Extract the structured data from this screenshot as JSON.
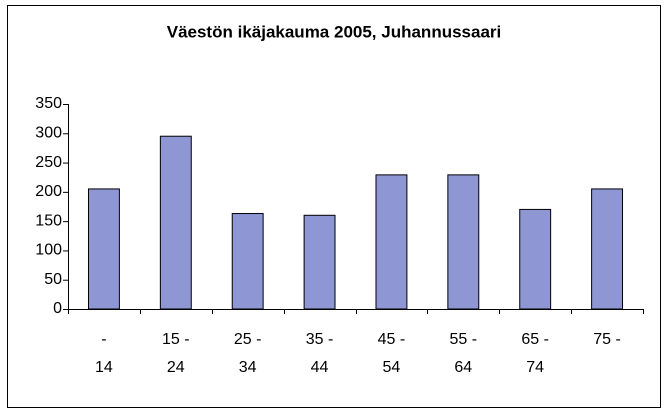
{
  "chart_data": {
    "type": "bar",
    "title": "Väestön ikäjakauma 2005, Juhannussaari",
    "categories": [
      "- 14",
      "15 - 24",
      "25 - 34",
      "35 - 44",
      "45 - 54",
      "55 - 64",
      "65 - 74",
      "75 -"
    ],
    "values": [
      205,
      295,
      163,
      160,
      229,
      229,
      170,
      205
    ],
    "color": "#8e97d4",
    "ylim": [
      0,
      350
    ],
    "yticks": [
      0,
      50,
      100,
      150,
      200,
      250,
      300,
      350
    ],
    "grid": false
  }
}
